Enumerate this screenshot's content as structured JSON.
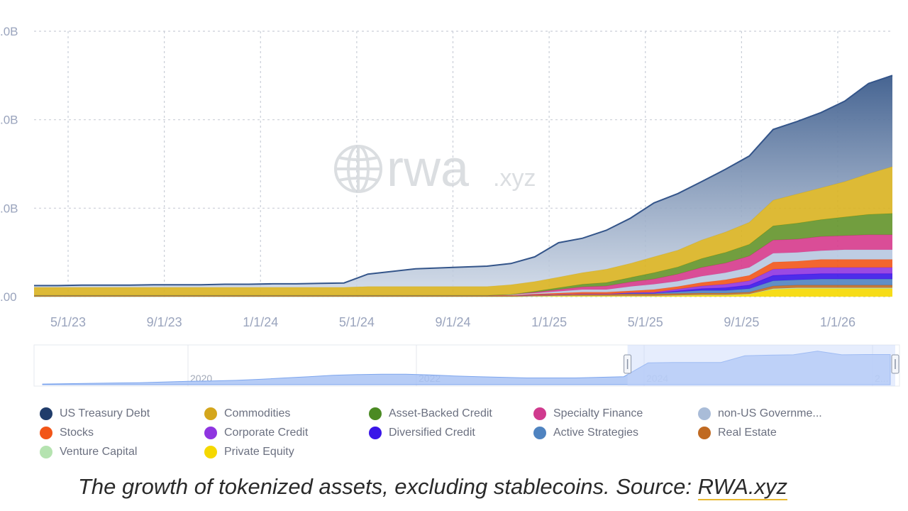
{
  "chart_data": {
    "type": "area",
    "stacked": true,
    "title": "",
    "xlabel": "",
    "ylabel": "",
    "y_tick_labels": [
      ".00",
      ".0B",
      ".0B",
      ".0B"
    ],
    "x_tick_labels": [
      "5/1/23",
      "9/1/23",
      "1/1/24",
      "5/1/24",
      "9/1/24",
      "1/1/25",
      "5/1/25",
      "9/1/25",
      "1/1/26"
    ],
    "ylim": [
      0,
      30
    ],
    "grid": true,
    "watermark": {
      "main": "rwa",
      "suffix": ".xyz"
    },
    "x": [
      "3/1/23",
      "4/1/23",
      "5/1/23",
      "6/1/23",
      "7/1/23",
      "8/1/23",
      "9/1/23",
      "10/1/23",
      "11/1/23",
      "12/1/23",
      "1/1/24",
      "2/1/24",
      "3/1/24",
      "4/1/24",
      "5/1/24",
      "6/1/24",
      "7/1/24",
      "8/1/24",
      "9/1/24",
      "10/1/24",
      "11/1/24",
      "12/1/24",
      "1/1/25",
      "2/1/25",
      "3/1/25",
      "4/1/25",
      "5/1/25",
      "6/1/25",
      "7/1/25",
      "8/1/25",
      "9/1/25",
      "10/1/25",
      "11/1/25",
      "12/1/25",
      "1/1/26",
      "2/1/26",
      "3/1/26"
    ],
    "series": [
      {
        "name": "Private Equity",
        "color": "#f5d800",
        "values": [
          0,
          0,
          0,
          0,
          0,
          0,
          0,
          0,
          0,
          0,
          0,
          0,
          0,
          0,
          0,
          0,
          0,
          0,
          0,
          0,
          0,
          0.05,
          0.1,
          0.1,
          0.1,
          0.1,
          0.1,
          0.15,
          0.2,
          0.2,
          0.3,
          0.8,
          0.9,
          0.9,
          0.9,
          0.9,
          0.9
        ]
      },
      {
        "name": "Venture Capital",
        "color": "#b5e3b0",
        "values": [
          0,
          0,
          0,
          0,
          0,
          0,
          0,
          0,
          0,
          0,
          0,
          0,
          0,
          0,
          0,
          0,
          0,
          0,
          0,
          0,
          0,
          0,
          0,
          0,
          0,
          0,
          0,
          0,
          0,
          0,
          0,
          0.1,
          0.1,
          0.1,
          0.1,
          0.1,
          0.1
        ]
      },
      {
        "name": "Real Estate",
        "color": "#c06a22",
        "values": [
          0.15,
          0.15,
          0.15,
          0.15,
          0.15,
          0.15,
          0.15,
          0.15,
          0.15,
          0.15,
          0.15,
          0.15,
          0.15,
          0.15,
          0.15,
          0.15,
          0.15,
          0.15,
          0.15,
          0.15,
          0.15,
          0.15,
          0.15,
          0.2,
          0.2,
          0.2,
          0.2,
          0.2,
          0.2,
          0.2,
          0.2,
          0.3,
          0.3,
          0.3,
          0.3,
          0.3,
          0.3
        ]
      },
      {
        "name": "Active Strategies",
        "color": "#4f83c0",
        "values": [
          0,
          0,
          0,
          0,
          0,
          0,
          0,
          0,
          0,
          0,
          0,
          0,
          0,
          0,
          0,
          0,
          0,
          0,
          0,
          0,
          0,
          0,
          0,
          0,
          0,
          0.1,
          0.1,
          0.2,
          0.3,
          0.3,
          0.4,
          0.6,
          0.6,
          0.7,
          0.7,
          0.7,
          0.7
        ]
      },
      {
        "name": "Diversified Credit",
        "color": "#3a16e8",
        "values": [
          0,
          0,
          0,
          0,
          0,
          0,
          0,
          0,
          0,
          0,
          0,
          0,
          0,
          0,
          0,
          0,
          0,
          0,
          0,
          0,
          0,
          0,
          0,
          0,
          0,
          0,
          0,
          0.1,
          0.2,
          0.3,
          0.4,
          0.6,
          0.6,
          0.6,
          0.6,
          0.6,
          0.6
        ]
      },
      {
        "name": "Corporate Credit",
        "color": "#8f35e0",
        "values": [
          0,
          0,
          0,
          0,
          0,
          0,
          0,
          0,
          0,
          0,
          0,
          0,
          0,
          0,
          0,
          0,
          0,
          0,
          0,
          0,
          0,
          0,
          0,
          0,
          0,
          0.05,
          0.1,
          0.2,
          0.3,
          0.4,
          0.5,
          0.7,
          0.7,
          0.7,
          0.7,
          0.7,
          0.7
        ]
      },
      {
        "name": "Stocks",
        "color": "#f25518",
        "values": [
          0,
          0,
          0,
          0,
          0,
          0,
          0,
          0,
          0,
          0,
          0,
          0,
          0,
          0,
          0,
          0,
          0,
          0,
          0,
          0,
          0,
          0.1,
          0.15,
          0.2,
          0.2,
          0.2,
          0.3,
          0.3,
          0.4,
          0.5,
          0.6,
          0.8,
          0.8,
          0.9,
          0.9,
          0.9,
          0.9
        ]
      },
      {
        "name": "non-US Government Debt",
        "color": "#b7c8e0",
        "values": [
          0,
          0,
          0,
          0,
          0,
          0,
          0,
          0,
          0,
          0,
          0,
          0,
          0,
          0,
          0,
          0,
          0,
          0,
          0,
          0,
          0.1,
          0.1,
          0.2,
          0.3,
          0.3,
          0.5,
          0.6,
          0.6,
          0.7,
          0.8,
          0.9,
          1.0,
          1.0,
          1.0,
          1.1,
          1.1,
          1.1
        ]
      },
      {
        "name": "Specialty Finance",
        "color": "#d63a8c",
        "values": [
          0,
          0,
          0,
          0,
          0,
          0,
          0,
          0,
          0,
          0,
          0,
          0,
          0,
          0,
          0,
          0,
          0,
          0,
          0,
          0,
          0,
          0.1,
          0.2,
          0.3,
          0.4,
          0.5,
          0.6,
          0.8,
          1.0,
          1.1,
          1.3,
          1.5,
          1.5,
          1.6,
          1.6,
          1.7,
          1.7
        ]
      },
      {
        "name": "Asset-Backed Credit",
        "color": "#63932a",
        "values": [
          0,
          0,
          0,
          0,
          0,
          0,
          0,
          0,
          0,
          0,
          0,
          0,
          0,
          0,
          0,
          0,
          0,
          0,
          0,
          0,
          0,
          0.1,
          0.2,
          0.3,
          0.4,
          0.5,
          0.7,
          0.8,
          1.0,
          1.2,
          1.3,
          1.6,
          1.8,
          1.9,
          2.1,
          2.3,
          2.4
        ]
      },
      {
        "name": "Commodities",
        "color": "#d9b320",
        "values": [
          0.9,
          0.9,
          0.9,
          0.9,
          0.9,
          0.9,
          0.9,
          0.9,
          0.9,
          0.9,
          0.9,
          0.9,
          0.9,
          0.9,
          1.0,
          1.0,
          1.0,
          1.0,
          1.0,
          1.0,
          1.1,
          1.1,
          1.2,
          1.3,
          1.5,
          1.6,
          1.8,
          1.9,
          2.1,
          2.3,
          2.5,
          2.9,
          3.3,
          3.6,
          4.0,
          4.6,
          5.3
        ]
      },
      {
        "name": "US Treasury Debt",
        "color": "#3c5c8c",
        "values": [
          0.2,
          0.2,
          0.25,
          0.25,
          0.25,
          0.3,
          0.3,
          0.3,
          0.35,
          0.35,
          0.4,
          0.4,
          0.45,
          0.5,
          1.4,
          1.7,
          2.0,
          2.1,
          2.2,
          2.3,
          2.4,
          2.8,
          3.9,
          3.9,
          4.4,
          5.1,
          6.1,
          6.4,
          6.6,
          7.1,
          7.5,
          8.0,
          8.2,
          8.5,
          9.1,
          10.2,
          10.3
        ]
      }
    ],
    "legend_position": "bottom",
    "navigator": {
      "year_labels": [
        "2020",
        "2022",
        "2024",
        "2..."
      ],
      "values": [
        0.2,
        0.3,
        0.4,
        0.5,
        0.6,
        0.8,
        1,
        1.1,
        1.3,
        1.6,
        2,
        2.4,
        2.8,
        3,
        3.1,
        3.1,
        2.9,
        2.6,
        2.4,
        2.2,
        2,
        2,
        2,
        2.2,
        2.4,
        6.5,
        6.6,
        6.6,
        6.6,
        8.6,
        8.8,
        8.9,
        10,
        8.9,
        9,
        9
      ],
      "ymax": 11,
      "selection": [
        0.68,
        1.0
      ]
    }
  },
  "legend": [
    {
      "label": "US Treasury Debt",
      "color": "#213d6b"
    },
    {
      "label": "Commodities",
      "color": "#d4a61c"
    },
    {
      "label": "Asset-Backed Credit",
      "color": "#4b8a23"
    },
    {
      "label": "Specialty Finance",
      "color": "#d03a8e"
    },
    {
      "label": "non-US Governme...",
      "color": "#a9bcd8"
    },
    {
      "label": "Stocks",
      "color": "#f25518"
    },
    {
      "label": "Corporate Credit",
      "color": "#8f35e0"
    },
    {
      "label": "Diversified Credit",
      "color": "#3a16e8"
    },
    {
      "label": "Active Strategies",
      "color": "#4f83c0"
    },
    {
      "label": "Real Estate",
      "color": "#c06a22"
    },
    {
      "label": "Venture Capital",
      "color": "#b5e3b0"
    },
    {
      "label": "Private Equity",
      "color": "#f5d800"
    }
  ],
  "caption": {
    "text": "The growth of tokenized assets, excluding stablecoins. Source: ",
    "source": "RWA.xyz"
  }
}
